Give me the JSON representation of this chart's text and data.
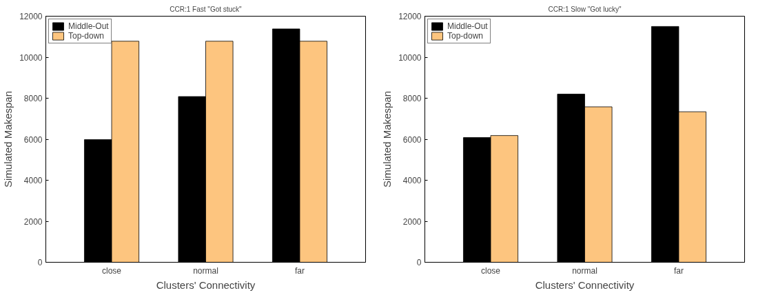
{
  "chart_data": [
    {
      "type": "bar",
      "title": "CCR:1 Fast \"Got stuck\"",
      "xlabel": "Clusters' Connectivity",
      "ylabel": "Simulated Makespan",
      "categories": [
        "close",
        "normal",
        "far"
      ],
      "series": [
        {
          "name": "Middle-Out",
          "color": "#000000",
          "values": [
            5980,
            8080,
            11380
          ]
        },
        {
          "name": "Top-down",
          "color": "#fdc57f",
          "values": [
            10780,
            10780,
            10780
          ]
        }
      ],
      "ylim": [
        0,
        12000
      ],
      "yticks": [
        0,
        2000,
        4000,
        6000,
        8000,
        10000,
        12000
      ],
      "grid": false,
      "legend": "top left"
    },
    {
      "type": "bar",
      "title": "CCR:1 Slow \"Got lucky\"",
      "xlabel": "Clusters' Connectivity",
      "ylabel": "Simulated Makespan",
      "categories": [
        "close",
        "normal",
        "far"
      ],
      "series": [
        {
          "name": "Middle-Out",
          "color": "#000000",
          "values": [
            6080,
            8200,
            11500
          ]
        },
        {
          "name": "Top-down",
          "color": "#fdc57f",
          "values": [
            6180,
            7580,
            7340
          ]
        }
      ],
      "ylim": [
        0,
        12000
      ],
      "yticks": [
        0,
        2000,
        4000,
        6000,
        8000,
        10000,
        12000
      ],
      "grid": false,
      "legend": "top left"
    }
  ]
}
